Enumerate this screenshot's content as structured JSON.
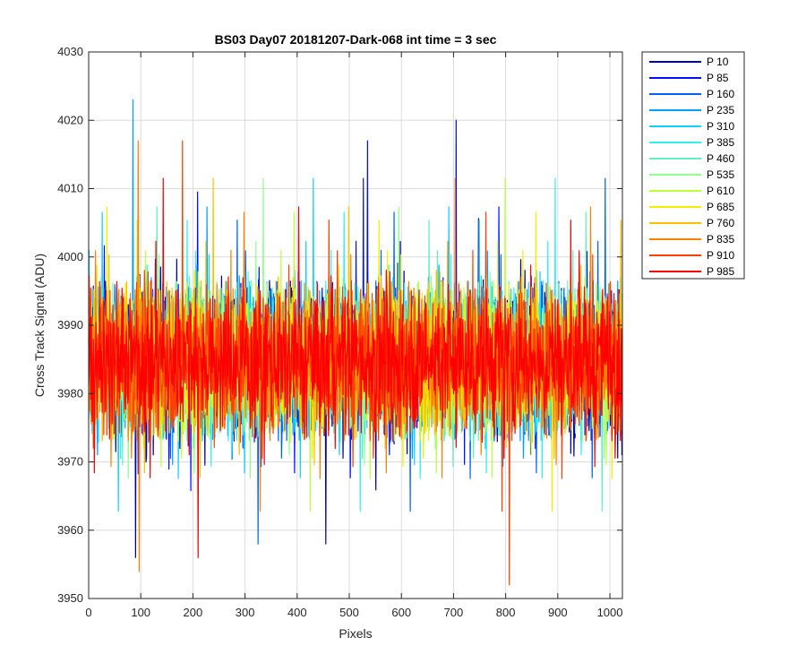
{
  "chart_data": {
    "type": "line",
    "title": "BS03 Day07 20181207-Dark-068 int time = 3 sec",
    "xlabel": "Pixels",
    "ylabel": "Cross Track Signal (ADU)",
    "xlim": [
      0,
      1024
    ],
    "ylim": [
      3950,
      4030
    ],
    "xticks": [
      "0",
      "100",
      "200",
      "300",
      "400",
      "500",
      "600",
      "700",
      "800",
      "900",
      "1000"
    ],
    "yticks": [
      "3950",
      "3960",
      "3970",
      "3980",
      "3990",
      "4000",
      "4010",
      "4020",
      "4030"
    ],
    "grid": true,
    "legend_position": "outside-top-right",
    "series_summary": {
      "points_per_series": 1024,
      "typical_range": [
        3970,
        4000
      ],
      "mean": 3985
    },
    "series": [
      {
        "name": "P 10",
        "color": "#00008f"
      },
      {
        "name": "P 85",
        "color": "#0010ff"
      },
      {
        "name": "P 160",
        "color": "#0060ff"
      },
      {
        "name": "P 235",
        "color": "#00a0ff"
      },
      {
        "name": "P 310",
        "color": "#10d0ff"
      },
      {
        "name": "P 385",
        "color": "#30f0f0"
      },
      {
        "name": "P 460",
        "color": "#60f0c0"
      },
      {
        "name": "P 535",
        "color": "#90ff90"
      },
      {
        "name": "P 610",
        "color": "#c0ff40"
      },
      {
        "name": "P 685",
        "color": "#f0f000"
      },
      {
        "name": "P 760",
        "color": "#ffc000"
      },
      {
        "name": "P 835",
        "color": "#ff8000"
      },
      {
        "name": "P 910",
        "color": "#ff4000"
      },
      {
        "name": "P 985",
        "color": "#ff0000"
      }
    ],
    "notable_peaks": [
      {
        "series": "P 235",
        "x": 85,
        "y": 4023
      },
      {
        "series": "P 835",
        "x": 95,
        "y": 4017
      },
      {
        "series": "P 10",
        "x": 90,
        "y": 3956
      },
      {
        "series": "P 835",
        "x": 97,
        "y": 3954
      },
      {
        "series": "P 910",
        "x": 180,
        "y": 4017
      },
      {
        "series": "P 985",
        "x": 210,
        "y": 3956
      },
      {
        "series": "P 85",
        "x": 535,
        "y": 4017
      },
      {
        "series": "P 85",
        "x": 705,
        "y": 4020
      },
      {
        "series": "P 910",
        "x": 807,
        "y": 3952
      },
      {
        "series": "P 160",
        "x": 325,
        "y": 3958
      },
      {
        "series": "P 10",
        "x": 455,
        "y": 3958
      }
    ]
  }
}
